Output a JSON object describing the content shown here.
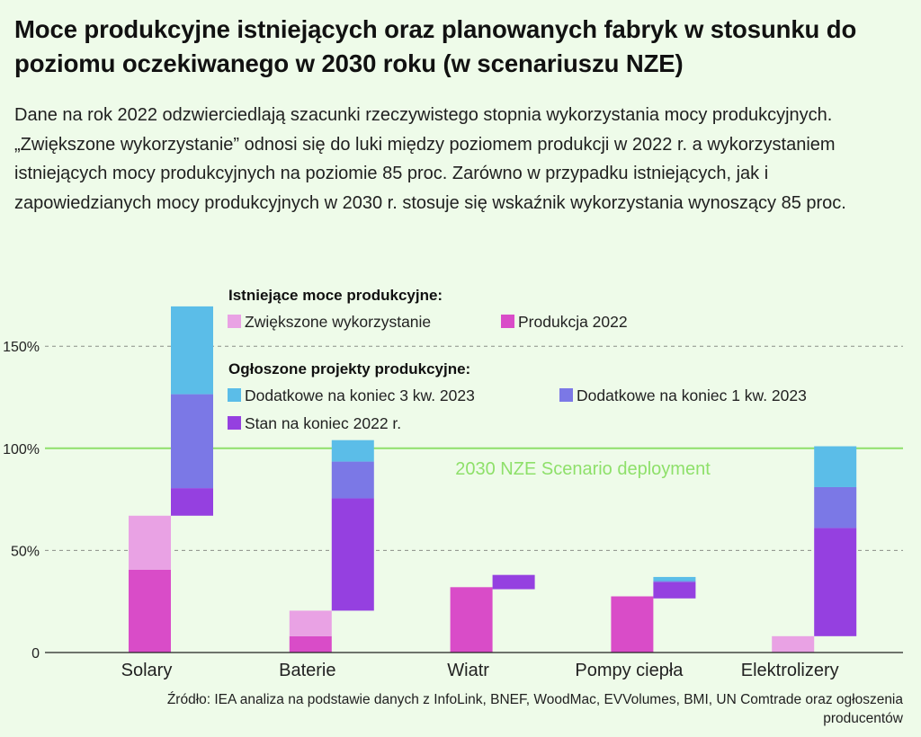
{
  "title": "Moce produkcyjne istniejących oraz planowanych fabryk w stosunku do poziomu oczekiwanego w 2030 roku (w scenariuszu NZE)",
  "subtitle": "Dane na rok 2022 odzwierciedlają szacunki rzeczywistego stopnia wykorzystania mocy produkcyjnych. „Zwiększone wykorzystanie” odnosi się do luki między poziomem produkcji w 2022 r. a wykorzystaniem istniejących mocy produkcyjnych na poziomie 85 proc. Zarówno w przypadku istniejących, jak i zapowiedzianych mocy produkcyjnych w 2030 r. stosuje się wskaźnik wykorzystania wynoszący 85 proc.",
  "source": "Źródło: IEA analiza na podstawie danych z InfoLink, BNEF, WoodMac, EVVolumes, BMI, UN Comtrade oraz ogłoszenia producentów",
  "chart_data": {
    "type": "bar",
    "stacking": "floating stacked bars, two per category",
    "categories": [
      "Solary",
      "Baterie",
      "Wiatr",
      "Pompy ciepła",
      "Elektrolizery"
    ],
    "y_ticks": [
      {
        "value": 0,
        "label": "0"
      },
      {
        "value": 50,
        "label": "50%"
      },
      {
        "value": 100,
        "label": "100%"
      },
      {
        "value": 150,
        "label": "150%"
      }
    ],
    "ylim": [
      0,
      170
    ],
    "grid": "dashed horizontal",
    "reference_line": {
      "value": 100,
      "label": "2030 NZE Scenario deployment",
      "color": "#8ee06a"
    },
    "legend": {
      "placement": "top-center",
      "groups": [
        {
          "title": "Istniejące moce produkcyjne:",
          "items": [
            "Zwiększone wykorzystanie",
            "Produkcja 2022"
          ]
        },
        {
          "title": "Ogłoszone projekty produkcyjne:",
          "items": [
            "Dodatkowe na koniec 3 kw. 2023",
            "Dodatkowe na koniec 1 kw. 2023",
            "Stan na koniec 2022 r."
          ]
        }
      ]
    },
    "existing_bars": {
      "series": [
        {
          "name": "Produkcja 2022",
          "color": "#d94cc8",
          "values": [
            40.5,
            8,
            32,
            27.5,
            0
          ]
        },
        {
          "name": "Zwiększone wykorzystanie",
          "color": "#e9a2e4",
          "values": [
            26.5,
            12.5,
            0,
            0,
            8
          ]
        }
      ]
    },
    "announced_bars": {
      "base": [
        67,
        20.5,
        31,
        26.5,
        8
      ],
      "series": [
        {
          "name": "Stan na koniec 2022 r.",
          "color": "#9540e0",
          "values": [
            13.5,
            55,
            7,
            8,
            53
          ]
        },
        {
          "name": "Dodatkowe na koniec 1 kw. 2023",
          "color": "#7b78e6",
          "values": [
            46,
            18,
            0,
            0.5,
            20
          ]
        },
        {
          "name": "Dodatkowe na koniec 3 kw. 2023",
          "color": "#5bbde8",
          "values": [
            43,
            10.5,
            0,
            2,
            20
          ]
        }
      ]
    }
  }
}
